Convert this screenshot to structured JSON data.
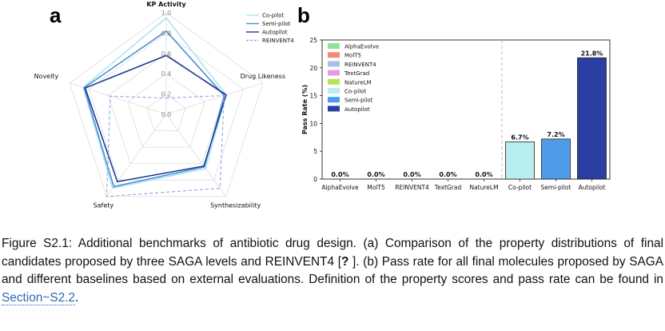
{
  "panel_a_letter": "a",
  "panel_b_letter": "b",
  "chart_data": [
    {
      "type": "radar",
      "axes": [
        "KP Activity",
        "Drug Likeness",
        "Synthesizability",
        "Safety",
        "Novelty"
      ],
      "bold_axes": [
        "KP Activity"
      ],
      "rlim": [
        0,
        1
      ],
      "ticks": [
        "0.0",
        "0.2",
        "0.4",
        "0.6",
        "0.8",
        "1.0"
      ],
      "tick_values": [
        0,
        0.2,
        0.4,
        0.6,
        0.8,
        1.0
      ],
      "legend_placement": "top-right",
      "series": [
        {
          "name": "Co-pilot",
          "color": "#aee3ee",
          "dashed": false,
          "values": [
            0.95,
            0.62,
            0.66,
            0.9,
            0.86
          ]
        },
        {
          "name": "Semi-pilot",
          "color": "#4a90d9",
          "dashed": false,
          "values": [
            0.82,
            0.6,
            0.64,
            0.88,
            0.85
          ]
        },
        {
          "name": "Autopilot",
          "color": "#1f3a93",
          "dashed": false,
          "values": [
            0.58,
            0.62,
            0.63,
            0.82,
            0.84
          ]
        },
        {
          "name": "REINVENT4",
          "color": "#8ea6dc",
          "dashed": true,
          "values": [
            0.16,
            0.6,
            0.9,
            1.0,
            0.58
          ]
        }
      ]
    },
    {
      "type": "bar",
      "ylabel": "Pass Rate (%)",
      "ylim": [
        0,
        25
      ],
      "yticks": [
        0,
        5,
        10,
        15,
        20,
        25
      ],
      "categories": [
        "AlphaEvolve",
        "MolT5",
        "REINVENT4",
        "TextGrad",
        "NatureLM",
        "Co-pilot",
        "Semi-pilot",
        "Autopilot"
      ],
      "values": [
        0.0,
        0.0,
        0.0,
        0.0,
        0.0,
        6.7,
        7.2,
        21.8
      ],
      "value_labels": [
        "0.0%",
        "0.0%",
        "0.0%",
        "0.0%",
        "0.0%",
        "6.7%",
        "7.2%",
        "21.8%"
      ],
      "colors": [
        "#8fe39a",
        "#f28b74",
        "#a7c0e8",
        "#e59be8",
        "#b6e35a",
        "#b9eef0",
        "#4f9be8",
        "#2b3fa3"
      ],
      "legend": [
        "AlphaEvolve",
        "MolT5",
        "REINVENT4",
        "TextGrad",
        "NatureLM",
        "Co-pilot",
        "Semi-pilot",
        "Autopilot"
      ],
      "legend_placement": "top-left",
      "separator_after_index": 4
    }
  ],
  "caption": {
    "prefix": "Figure S2.1: Additional benchmarks of antibiotic drug design. (a) Comparison of the property distributions of final candidates proposed by three SAGA levels and REINVENT4 [",
    "ref": "?",
    "middle": " ]. (b) Pass rate for all final molecules proposed by SAGA and different baselines based on external evaluations. Definition of the property scores and pass rate can be found in ",
    "link": "Section~S2.2",
    "suffix": "."
  }
}
